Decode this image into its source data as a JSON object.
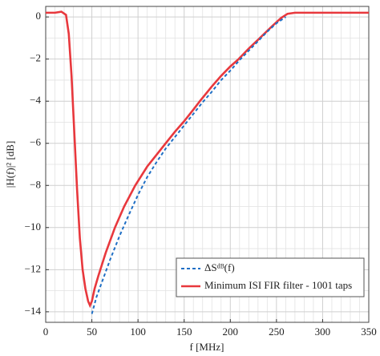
{
  "chart_data": {
    "type": "line",
    "xlabel": "f [MHz]",
    "ylabel": "|H(f)|² [dB]",
    "xlim": [
      0,
      350
    ],
    "ylim": [
      -14.5,
      0.5
    ],
    "xticks": [
      0,
      50,
      100,
      150,
      200,
      250,
      300,
      350
    ],
    "yticks": [
      0,
      {
        "value": -2,
        "label": "−2"
      },
      {
        "value": -4,
        "label": "−4"
      },
      {
        "value": -6,
        "label": "−6"
      },
      {
        "value": -8,
        "label": "−8"
      },
      {
        "value": -10,
        "label": "−10"
      },
      {
        "value": -12,
        "label": "−12"
      },
      {
        "value": -14,
        "label": "−14"
      }
    ],
    "x_minor_grid": [
      10,
      20,
      30,
      40,
      60,
      70,
      80,
      90,
      110,
      120,
      130,
      140,
      160,
      170,
      180,
      190,
      210,
      220,
      230,
      240,
      260,
      270,
      280,
      290,
      310,
      320,
      330,
      340
    ],
    "y_minor_grid": [
      -1,
      -3,
      -5,
      -7,
      -9,
      -11,
      -13
    ],
    "grid": true,
    "legend": "lower right",
    "series": [
      {
        "name": "ΔSᵈᴮ(f)",
        "color": "#1f6fc5",
        "dash": true,
        "x": [
          50,
          55,
          60,
          70,
          80,
          90,
          100,
          110,
          120,
          130,
          140,
          150,
          160,
          170,
          180,
          190,
          200,
          210,
          220,
          230,
          240,
          250,
          260
        ],
        "values": [
          -14.1,
          -13.3,
          -12.7,
          -11.5,
          -10.4,
          -9.4,
          -8.45,
          -7.6,
          -6.9,
          -6.25,
          -5.7,
          -5.15,
          -4.6,
          -4.05,
          -3.55,
          -3.0,
          -2.55,
          -2.05,
          -1.6,
          -1.15,
          -0.7,
          -0.3,
          0.0
        ]
      },
      {
        "name": "Minimum ISI FIR filter - 1001 taps",
        "color": "#e8383d",
        "dash": false,
        "x": [
          0,
          10,
          17,
          22,
          25,
          28,
          31,
          34,
          37,
          40,
          43,
          46,
          48,
          50,
          53,
          57,
          65,
          75,
          85,
          97,
          110,
          120,
          130,
          140,
          150,
          160,
          167,
          180,
          190,
          200,
          209,
          220,
          232,
          245,
          255,
          262,
          270,
          300,
          350
        ],
        "values": [
          0.2,
          0.2,
          0.25,
          0.1,
          -0.8,
          -2.8,
          -5.5,
          -8.2,
          -10.5,
          -12.0,
          -12.9,
          -13.5,
          -13.7,
          -13.5,
          -12.9,
          -12.3,
          -11.2,
          -10.0,
          -9.0,
          -8.0,
          -7.1,
          -6.55,
          -6.0,
          -5.45,
          -4.95,
          -4.4,
          -4.0,
          -3.3,
          -2.8,
          -2.35,
          -2.0,
          -1.5,
          -1.0,
          -0.45,
          -0.05,
          0.15,
          0.2,
          0.2,
          0.2
        ]
      }
    ]
  }
}
